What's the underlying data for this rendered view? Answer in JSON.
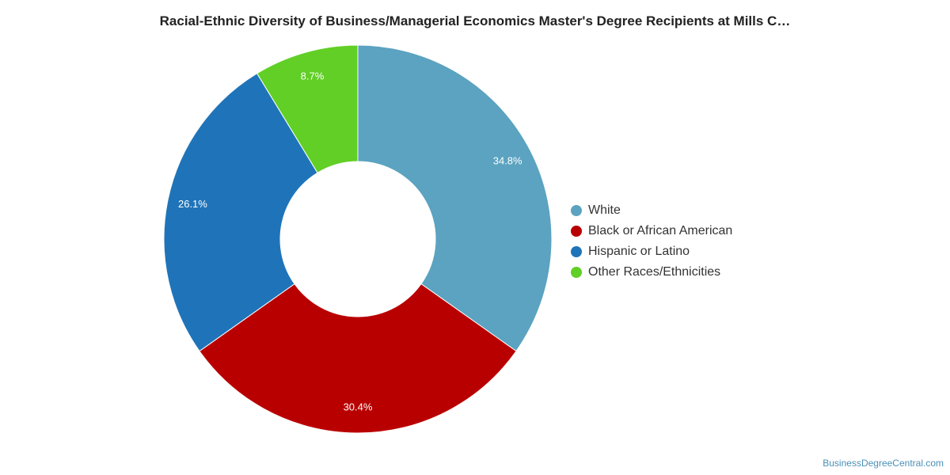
{
  "chart_data": {
    "type": "pie",
    "donut": true,
    "title": "Racial-Ethnic Diversity of Business/Managerial Economics Master's Degree Recipients at Mills C…",
    "categories": [
      "White",
      "Black or African American",
      "Hispanic or Latino",
      "Other Races/Ethnicities"
    ],
    "values": [
      34.8,
      30.4,
      26.1,
      8.7
    ],
    "value_labels": [
      "34.8%",
      "30.4%",
      "26.1%",
      "8.7%"
    ],
    "colors": [
      "#5ba3c0",
      "#b90000",
      "#1f74b9",
      "#61cf25"
    ],
    "legend_position": "right"
  },
  "credit": "BusinessDegreeCentral.com"
}
